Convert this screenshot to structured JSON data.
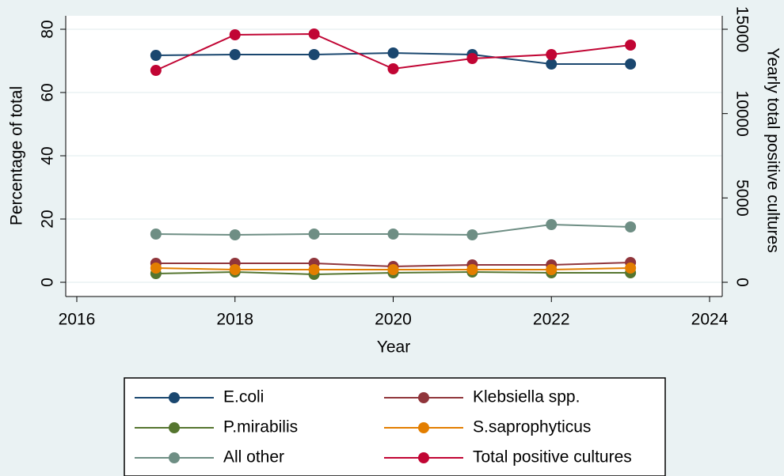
{
  "chart_data": {
    "type": "line",
    "x_label": "Year",
    "y_label": "Percentage of total",
    "y2_label": "Yearly total positive cultures",
    "x": [
      2017,
      2018,
      2019,
      2020,
      2021,
      2022,
      2023
    ],
    "series": [
      {
        "name": "E.coli",
        "color": "#1a476f",
        "values": [
          71.75,
          72,
          72,
          72.5,
          72,
          69,
          69
        ]
      },
      {
        "name": "Klebsiella spp.",
        "color": "#90353b",
        "values": [
          6,
          6,
          6,
          5,
          5.5,
          5.5,
          6.25
        ]
      },
      {
        "name": "P.mirabilis",
        "color": "#55752f",
        "values": [
          2.75,
          3.25,
          2.5,
          3,
          3.25,
          3,
          3
        ]
      },
      {
        "name": "S.saprophyticus",
        "color": "#e37e00",
        "values": [
          4.5,
          4,
          4,
          4,
          4,
          4,
          4.5
        ]
      },
      {
        "name": "All other",
        "color": "#6e8e84",
        "values": [
          15.25,
          15,
          15.25,
          15.25,
          15,
          18.25,
          17.5
        ]
      },
      {
        "name": "Total positive cultures",
        "color": "#c10534",
        "axis": "y2",
        "values": [
          12563,
          14672,
          14719,
          12656,
          13266,
          13500,
          14063
        ]
      }
    ],
    "xlim": [
      2015.86,
      2024.16
    ],
    "xticks": [
      2016,
      2018,
      2020,
      2022,
      2024
    ],
    "ylim": [
      -4.5,
      84.25
    ],
    "yticks": [
      0,
      20,
      40,
      60,
      80
    ],
    "y2lim": [
      -843.75,
      15796.875
    ],
    "y2ticks": [
      0,
      5000,
      10000,
      15000
    ],
    "grid": true
  }
}
